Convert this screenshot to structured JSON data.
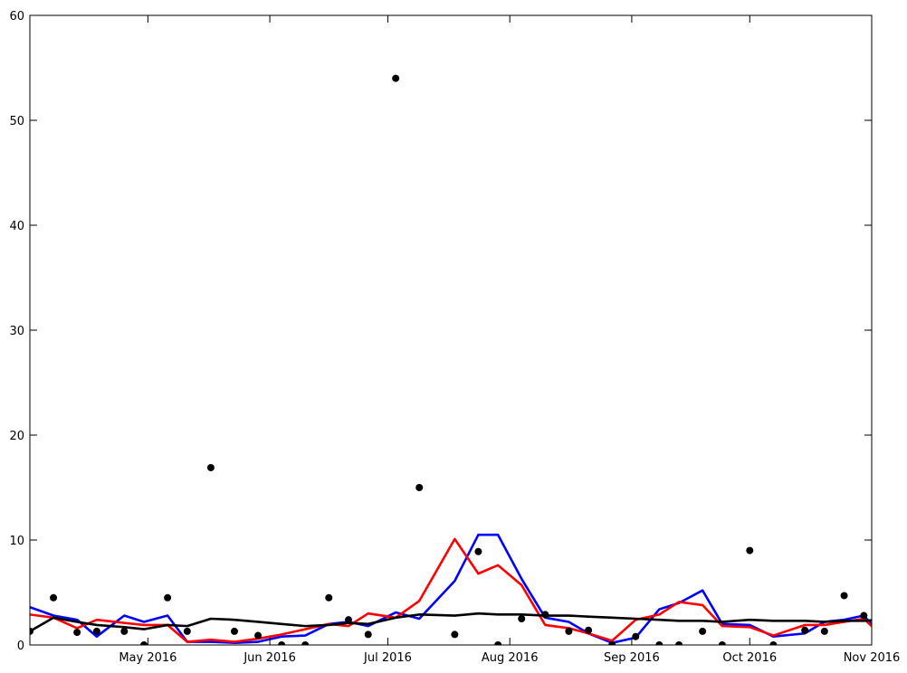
{
  "chart_data": {
    "type": "line",
    "title": "",
    "xlabel": "",
    "ylabel": "",
    "ylim": [
      0,
      60
    ],
    "xlim": [
      "2016-04-01",
      "2016-11-01"
    ],
    "grid": false,
    "y_ticks": [
      0,
      10,
      20,
      30,
      40,
      50,
      60
    ],
    "y_tick_labels": [
      "0",
      "10",
      "20",
      "30",
      "40",
      "50",
      "60"
    ],
    "x_ticks": [
      "2016-05-01",
      "2016-06-01",
      "2016-07-01",
      "2016-08-01",
      "2016-09-01",
      "2016-10-01",
      "2016-11-01"
    ],
    "x_tick_labels": [
      "May 2016",
      "Jun 2016",
      "Jul 2016",
      "Aug 2016",
      "Sep 2016",
      "Oct 2016",
      "Nov 2016"
    ],
    "colors": {
      "scatter": "#000000",
      "blue": "#0000ff",
      "red": "#ff0000",
      "black_line": "#000000"
    },
    "scatter_points": [
      {
        "x": "2016-04-01",
        "y": 1.3
      },
      {
        "x": "2016-04-07",
        "y": 4.5
      },
      {
        "x": "2016-04-13",
        "y": 1.2
      },
      {
        "x": "2016-04-18",
        "y": 1.3
      },
      {
        "x": "2016-04-25",
        "y": 1.3
      },
      {
        "x": "2016-04-30",
        "y": 0
      },
      {
        "x": "2016-05-06",
        "y": 4.5
      },
      {
        "x": "2016-05-11",
        "y": 1.3
      },
      {
        "x": "2016-05-17",
        "y": 16.9
      },
      {
        "x": "2016-05-23",
        "y": 1.3
      },
      {
        "x": "2016-05-29",
        "y": 0.9
      },
      {
        "x": "2016-06-04",
        "y": 0
      },
      {
        "x": "2016-06-10",
        "y": 0
      },
      {
        "x": "2016-06-16",
        "y": 4.5
      },
      {
        "x": "2016-06-21",
        "y": 2.4
      },
      {
        "x": "2016-06-26",
        "y": 1.0
      },
      {
        "x": "2016-07-03",
        "y": 54.0
      },
      {
        "x": "2016-07-09",
        "y": 15.0
      },
      {
        "x": "2016-07-18",
        "y": 1.0
      },
      {
        "x": "2016-07-24",
        "y": 8.9
      },
      {
        "x": "2016-07-29",
        "y": 0
      },
      {
        "x": "2016-08-04",
        "y": 2.5
      },
      {
        "x": "2016-08-10",
        "y": 2.9
      },
      {
        "x": "2016-08-16",
        "y": 1.3
      },
      {
        "x": "2016-08-21",
        "y": 1.4
      },
      {
        "x": "2016-08-27",
        "y": 0
      },
      {
        "x": "2016-09-02",
        "y": 0.8
      },
      {
        "x": "2016-09-08",
        "y": 0
      },
      {
        "x": "2016-09-13",
        "y": 0
      },
      {
        "x": "2016-09-19",
        "y": 1.3
      },
      {
        "x": "2016-09-24",
        "y": 0
      },
      {
        "x": "2016-10-01",
        "y": 9.0
      },
      {
        "x": "2016-10-07",
        "y": 0
      },
      {
        "x": "2016-10-15",
        "y": 1.4
      },
      {
        "x": "2016-10-20",
        "y": 1.3
      },
      {
        "x": "2016-10-25",
        "y": 4.7
      },
      {
        "x": "2016-10-30",
        "y": 2.8
      },
      {
        "x": "2016-11-03",
        "y": 2.8
      }
    ],
    "series": [
      {
        "color": "#0000ff",
        "values": [
          {
            "x": "2016-04-01",
            "y": 3.6
          },
          {
            "x": "2016-04-07",
            "y": 2.8
          },
          {
            "x": "2016-04-13",
            "y": 2.4
          },
          {
            "x": "2016-04-18",
            "y": 0.8
          },
          {
            "x": "2016-04-25",
            "y": 2.8
          },
          {
            "x": "2016-04-30",
            "y": 2.2
          },
          {
            "x": "2016-05-06",
            "y": 2.8
          },
          {
            "x": "2016-05-11",
            "y": 0.3
          },
          {
            "x": "2016-05-17",
            "y": 0.3
          },
          {
            "x": "2016-05-23",
            "y": 0.2
          },
          {
            "x": "2016-05-29",
            "y": 0.3
          },
          {
            "x": "2016-06-04",
            "y": 0.8
          },
          {
            "x": "2016-06-10",
            "y": 0.9
          },
          {
            "x": "2016-06-16",
            "y": 2.0
          },
          {
            "x": "2016-06-21",
            "y": 2.2
          },
          {
            "x": "2016-06-26",
            "y": 1.8
          },
          {
            "x": "2016-07-03",
            "y": 3.1
          },
          {
            "x": "2016-07-09",
            "y": 2.5
          },
          {
            "x": "2016-07-18",
            "y": 6.1
          },
          {
            "x": "2016-07-24",
            "y": 10.5
          },
          {
            "x": "2016-07-29",
            "y": 10.5
          },
          {
            "x": "2016-08-04",
            "y": 6.3
          },
          {
            "x": "2016-08-10",
            "y": 2.6
          },
          {
            "x": "2016-08-16",
            "y": 2.2
          },
          {
            "x": "2016-08-21",
            "y": 1.1
          },
          {
            "x": "2016-08-27",
            "y": 0.2
          },
          {
            "x": "2016-09-02",
            "y": 0.7
          },
          {
            "x": "2016-09-08",
            "y": 3.4
          },
          {
            "x": "2016-09-13",
            "y": 4.0
          },
          {
            "x": "2016-09-19",
            "y": 5.2
          },
          {
            "x": "2016-09-24",
            "y": 2.0
          },
          {
            "x": "2016-10-01",
            "y": 1.9
          },
          {
            "x": "2016-10-07",
            "y": 0.8
          },
          {
            "x": "2016-10-15",
            "y": 1.1
          },
          {
            "x": "2016-10-20",
            "y": 2.2
          },
          {
            "x": "2016-10-25",
            "y": 2.4
          },
          {
            "x": "2016-10-30",
            "y": 2.8
          },
          {
            "x": "2016-11-03",
            "y": 1.1
          }
        ]
      },
      {
        "color": "#ff0000",
        "values": [
          {
            "x": "2016-04-01",
            "y": 2.9
          },
          {
            "x": "2016-04-07",
            "y": 2.6
          },
          {
            "x": "2016-04-13",
            "y": 1.6
          },
          {
            "x": "2016-04-18",
            "y": 2.4
          },
          {
            "x": "2016-04-25",
            "y": 2.1
          },
          {
            "x": "2016-04-30",
            "y": 1.9
          },
          {
            "x": "2016-05-06",
            "y": 1.9
          },
          {
            "x": "2016-05-11",
            "y": 0.3
          },
          {
            "x": "2016-05-17",
            "y": 0.5
          },
          {
            "x": "2016-05-23",
            "y": 0.3
          },
          {
            "x": "2016-05-29",
            "y": 0.6
          },
          {
            "x": "2016-06-04",
            "y": 1.0
          },
          {
            "x": "2016-06-10",
            "y": 1.5
          },
          {
            "x": "2016-06-16",
            "y": 2.0
          },
          {
            "x": "2016-06-21",
            "y": 1.8
          },
          {
            "x": "2016-06-26",
            "y": 3.0
          },
          {
            "x": "2016-07-03",
            "y": 2.6
          },
          {
            "x": "2016-07-09",
            "y": 4.2
          },
          {
            "x": "2016-07-18",
            "y": 10.1
          },
          {
            "x": "2016-07-24",
            "y": 6.8
          },
          {
            "x": "2016-07-29",
            "y": 7.6
          },
          {
            "x": "2016-08-04",
            "y": 5.7
          },
          {
            "x": "2016-08-10",
            "y": 1.9
          },
          {
            "x": "2016-08-16",
            "y": 1.6
          },
          {
            "x": "2016-08-21",
            "y": 1.1
          },
          {
            "x": "2016-08-27",
            "y": 0.4
          },
          {
            "x": "2016-09-02",
            "y": 2.4
          },
          {
            "x": "2016-09-08",
            "y": 2.9
          },
          {
            "x": "2016-09-13",
            "y": 4.1
          },
          {
            "x": "2016-09-19",
            "y": 3.8
          },
          {
            "x": "2016-09-24",
            "y": 1.8
          },
          {
            "x": "2016-10-01",
            "y": 1.7
          },
          {
            "x": "2016-10-07",
            "y": 0.9
          },
          {
            "x": "2016-10-15",
            "y": 1.9
          },
          {
            "x": "2016-10-20",
            "y": 1.9
          },
          {
            "x": "2016-10-25",
            "y": 2.2
          },
          {
            "x": "2016-10-30",
            "y": 2.5
          },
          {
            "x": "2016-11-03",
            "y": 1.1
          }
        ]
      },
      {
        "color": "#000000",
        "values": [
          {
            "x": "2016-04-01",
            "y": 1.3
          },
          {
            "x": "2016-04-07",
            "y": 2.6
          },
          {
            "x": "2016-04-13",
            "y": 2.2
          },
          {
            "x": "2016-04-18",
            "y": 1.9
          },
          {
            "x": "2016-04-25",
            "y": 1.7
          },
          {
            "x": "2016-04-30",
            "y": 1.5
          },
          {
            "x": "2016-05-06",
            "y": 1.9
          },
          {
            "x": "2016-05-11",
            "y": 1.8
          },
          {
            "x": "2016-05-17",
            "y": 2.5
          },
          {
            "x": "2016-05-23",
            "y": 2.4
          },
          {
            "x": "2016-05-29",
            "y": 2.2
          },
          {
            "x": "2016-06-04",
            "y": 2.0
          },
          {
            "x": "2016-06-10",
            "y": 1.8
          },
          {
            "x": "2016-06-16",
            "y": 1.9
          },
          {
            "x": "2016-06-21",
            "y": 2.1
          },
          {
            "x": "2016-06-26",
            "y": 2.0
          },
          {
            "x": "2016-07-03",
            "y": 2.6
          },
          {
            "x": "2016-07-09",
            "y": 2.9
          },
          {
            "x": "2016-07-18",
            "y": 2.8
          },
          {
            "x": "2016-07-24",
            "y": 3.0
          },
          {
            "x": "2016-07-29",
            "y": 2.9
          },
          {
            "x": "2016-08-04",
            "y": 2.9
          },
          {
            "x": "2016-08-10",
            "y": 2.8
          },
          {
            "x": "2016-08-16",
            "y": 2.8
          },
          {
            "x": "2016-08-21",
            "y": 2.7
          },
          {
            "x": "2016-08-27",
            "y": 2.6
          },
          {
            "x": "2016-09-02",
            "y": 2.5
          },
          {
            "x": "2016-09-08",
            "y": 2.4
          },
          {
            "x": "2016-09-13",
            "y": 2.3
          },
          {
            "x": "2016-09-19",
            "y": 2.3
          },
          {
            "x": "2016-09-24",
            "y": 2.2
          },
          {
            "x": "2016-10-01",
            "y": 2.4
          },
          {
            "x": "2016-10-07",
            "y": 2.3
          },
          {
            "x": "2016-10-15",
            "y": 2.3
          },
          {
            "x": "2016-10-20",
            "y": 2.2
          },
          {
            "x": "2016-10-25",
            "y": 2.3
          },
          {
            "x": "2016-10-30",
            "y": 2.3
          },
          {
            "x": "2016-11-03",
            "y": 2.4
          }
        ]
      }
    ]
  }
}
